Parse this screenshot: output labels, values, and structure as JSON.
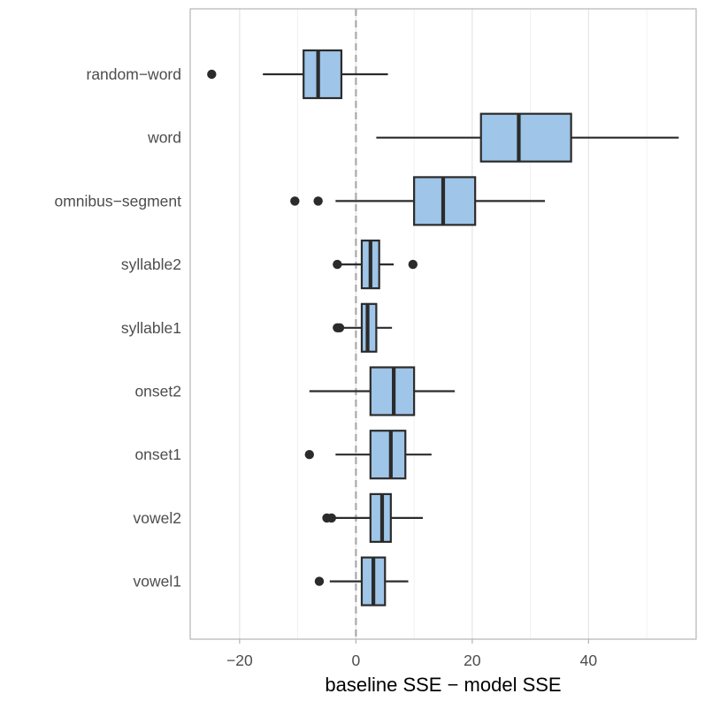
{
  "chart_data": {
    "type": "boxplot",
    "orientation": "horizontal",
    "title": "",
    "xlabel": "baseline SSE − model SSE",
    "ylabel": "",
    "xlim": [
      -28.5,
      58.5
    ],
    "xticks": [
      -20,
      0,
      20,
      40
    ],
    "xtick_labels": [
      "−20",
      "0",
      "20",
      "40"
    ],
    "grid": true,
    "reference_line": {
      "x": 0,
      "style": "dashed",
      "color": "#aaaaaa"
    },
    "box_fill": "#9fc5e8",
    "box_stroke": "#2b2b2b",
    "categories": [
      "random−word",
      "word",
      "omnibus−segment",
      "syllable2",
      "syllable1",
      "onset2",
      "onset1",
      "vowel2",
      "vowel1"
    ],
    "boxes": [
      {
        "name": "random−word",
        "whisker_low": -16,
        "q1": -9,
        "median": -6.5,
        "q3": -2.5,
        "whisker_high": 5.5,
        "outliers": [
          -24.8
        ]
      },
      {
        "name": "word",
        "whisker_low": 3.5,
        "q1": 21.5,
        "median": 28,
        "q3": 37,
        "whisker_high": 55.5,
        "outliers": []
      },
      {
        "name": "omnibus−segment",
        "whisker_low": -3.5,
        "q1": 10,
        "median": 15,
        "q3": 20.5,
        "whisker_high": 32.5,
        "outliers": [
          -10.5,
          -6.5
        ]
      },
      {
        "name": "syllable2",
        "whisker_low": -3,
        "q1": 1,
        "median": 2.5,
        "q3": 4,
        "whisker_high": 6.5,
        "outliers": [
          -3.2,
          9.8
        ]
      },
      {
        "name": "syllable1",
        "whisker_low": -2.5,
        "q1": 1,
        "median": 2,
        "q3": 3.5,
        "whisker_high": 6.2,
        "outliers": [
          -3.2,
          -2.8
        ]
      },
      {
        "name": "onset2",
        "whisker_low": -8,
        "q1": 2.5,
        "median": 6.5,
        "q3": 10,
        "whisker_high": 17,
        "outliers": []
      },
      {
        "name": "onset1",
        "whisker_low": -3.5,
        "q1": 2.5,
        "median": 6,
        "q3": 8.5,
        "whisker_high": 13,
        "outliers": [
          -8
        ]
      },
      {
        "name": "vowel2",
        "whisker_low": -3.5,
        "q1": 2.5,
        "median": 4.5,
        "q3": 6,
        "whisker_high": 11.5,
        "outliers": [
          -5,
          -4.2
        ]
      },
      {
        "name": "vowel1",
        "whisker_low": -4.5,
        "q1": 1,
        "median": 3,
        "q3": 5,
        "whisker_high": 9,
        "outliers": [
          -6.3
        ]
      }
    ]
  }
}
